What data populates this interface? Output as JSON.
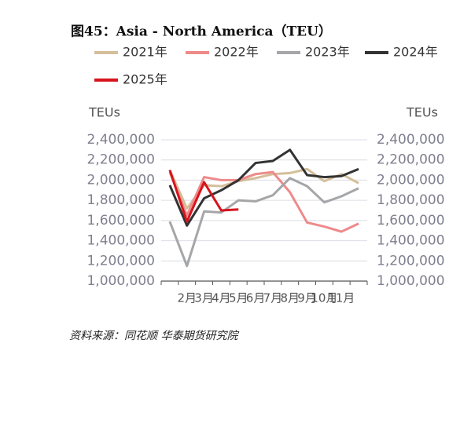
{
  "chart_data": {
    "type": "line",
    "title": "图45：Asia - North America（TEU）",
    "y_label": "TEUs",
    "y2_label": "TEUs",
    "categories": [
      null,
      "2月",
      "3月",
      "4月",
      "5月",
      "6月",
      "7月",
      "8月",
      "9月",
      "10月",
      "11月",
      null
    ],
    "series": [
      {
        "name": "2021年",
        "color": "#d4bf9a",
        "values": [
          2100000,
          1720000,
          1950000,
          1940000,
          1990000,
          2020000,
          2060000,
          2070000,
          2110000,
          1990000,
          2060000,
          1970000
        ]
      },
      {
        "name": "2022年",
        "color": "#ee8a8a",
        "values": [
          2080000,
          1650000,
          2030000,
          2000000,
          2000000,
          2060000,
          2080000,
          1880000,
          1580000,
          1540000,
          1490000,
          1570000
        ]
      },
      {
        "name": "2023年",
        "color": "#a5a6a8",
        "values": [
          1590000,
          1150000,
          1690000,
          1680000,
          1800000,
          1790000,
          1850000,
          2020000,
          1940000,
          1780000,
          1840000,
          1920000
        ]
      },
      {
        "name": "2024年",
        "color": "#333333",
        "values": [
          1950000,
          1550000,
          1820000,
          1900000,
          2000000,
          2170000,
          2190000,
          2300000,
          2050000,
          2030000,
          2040000,
          2110000
        ]
      },
      {
        "name": "2025年",
        "color": "#d7141c",
        "values": [
          2100000,
          1590000,
          1980000,
          1700000,
          1710000,
          null,
          null,
          null,
          null,
          null,
          null,
          null
        ]
      }
    ],
    "ylim": [
      1000000,
      2400000
    ],
    "yticks": [
      {
        "value": 1000000,
        "label": "1,000,000"
      },
      {
        "value": 1200000,
        "label": "1,200,000"
      },
      {
        "value": 1400000,
        "label": "1,400,000"
      },
      {
        "value": 1600000,
        "label": "1,600,000"
      },
      {
        "value": 1800000,
        "label": "1,800,000"
      },
      {
        "value": 2000000,
        "label": "2,000,000"
      },
      {
        "value": 2200000,
        "label": "2,200,000"
      },
      {
        "value": 2400000,
        "label": "2,400,000"
      }
    ],
    "y2lim": [
      1000000,
      2400000
    ],
    "y2ticks": [
      {
        "value": 1000000,
        "label": "1,000,000"
      },
      {
        "value": 1200000,
        "label": "1,200,000"
      },
      {
        "value": 1400000,
        "label": "1,400,000"
      },
      {
        "value": 1600000,
        "label": "1,600,000"
      },
      {
        "value": 1800000,
        "label": "1,800,000"
      },
      {
        "value": 2000000,
        "label": "2,000,000"
      },
      {
        "value": 2200000,
        "label": "2,200,000"
      },
      {
        "value": 2400000,
        "label": "2,400,000"
      }
    ],
    "grid": true,
    "source": "资料来源：同花顺 华泰期货研究院"
  }
}
